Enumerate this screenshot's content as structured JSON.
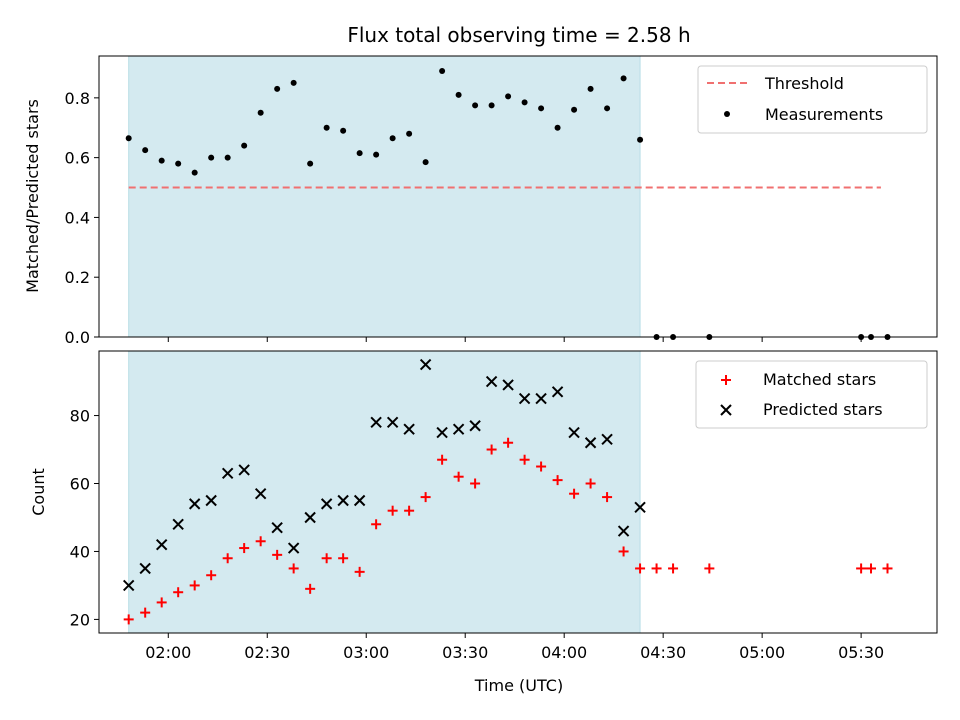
{
  "chart_data": [
    {
      "type": "scatter",
      "title": "Flux total observing time = 2.58 h",
      "xlabel": "",
      "ylabel": "Matched/Predicted stars",
      "xlim": [
        "01:39",
        "05:53"
      ],
      "ylim": [
        0,
        0.94
      ],
      "yticks": [
        0.0,
        0.2,
        0.4,
        0.6,
        0.8
      ],
      "ytick_labels": [
        "0.0",
        "0.2",
        "0.4",
        "0.6",
        "0.8"
      ],
      "shaded_span": [
        "01:48",
        "04:23"
      ],
      "shade_color": "#d4eaf0",
      "grid": false,
      "legend_position": "top-right",
      "threshold": {
        "name": "Threshold",
        "y": 0.5,
        "x_range": [
          "01:48",
          "05:36"
        ],
        "color": "#f07070"
      },
      "series": [
        {
          "name": "Measurements",
          "marker": "dot",
          "color": "#000000",
          "x": [
            "01:48",
            "01:53",
            "01:58",
            "02:03",
            "02:08",
            "02:13",
            "02:18",
            "02:23",
            "02:28",
            "02:33",
            "02:38",
            "02:43",
            "02:48",
            "02:53",
            "02:58",
            "03:03",
            "03:08",
            "03:13",
            "03:18",
            "03:23",
            "03:28",
            "03:33",
            "03:38",
            "03:43",
            "03:48",
            "03:53",
            "03:58",
            "04:03",
            "04:08",
            "04:13",
            "04:18",
            "04:23",
            "04:28",
            "04:33",
            "04:44",
            "05:30",
            "05:33",
            "05:38"
          ],
          "values": [
            0.665,
            0.625,
            0.59,
            0.58,
            0.55,
            0.6,
            0.6,
            0.64,
            0.75,
            0.83,
            0.85,
            0.58,
            0.7,
            0.69,
            0.615,
            0.61,
            0.665,
            0.68,
            0.585,
            0.89,
            0.81,
            0.775,
            0.775,
            0.805,
            0.785,
            0.765,
            0.7,
            0.76,
            0.83,
            0.765,
            0.865,
            0.66,
            0.0,
            0.0,
            0.0,
            0.0,
            0.0,
            0.0
          ]
        }
      ]
    },
    {
      "type": "scatter",
      "title": "",
      "xlabel": "Time (UTC)",
      "ylabel": "Count",
      "xlim": [
        "01:39",
        "05:53"
      ],
      "ylim": [
        16,
        99
      ],
      "xticks": [
        "02:00",
        "02:30",
        "03:00",
        "03:30",
        "04:00",
        "04:30",
        "05:00",
        "05:30"
      ],
      "yticks": [
        20,
        40,
        60,
        80
      ],
      "ytick_labels": [
        "20",
        "40",
        "60",
        "80"
      ],
      "shaded_span": [
        "01:48",
        "04:23"
      ],
      "shade_color": "#d4eaf0",
      "grid": false,
      "legend_position": "top-right",
      "series": [
        {
          "name": "Matched stars",
          "marker": "plus",
          "color": "#ff0000",
          "x": [
            "01:48",
            "01:53",
            "01:58",
            "02:03",
            "02:08",
            "02:13",
            "02:18",
            "02:23",
            "02:28",
            "02:33",
            "02:38",
            "02:43",
            "02:48",
            "02:53",
            "02:58",
            "03:03",
            "03:08",
            "03:13",
            "03:18",
            "03:23",
            "03:28",
            "03:33",
            "03:38",
            "03:43",
            "03:48",
            "03:53",
            "03:58",
            "04:03",
            "04:08",
            "04:13",
            "04:18",
            "04:23",
            "04:28",
            "04:33",
            "04:44",
            "05:30",
            "05:33",
            "05:38"
          ],
          "values": [
            20,
            22,
            25,
            28,
            30,
            33,
            38,
            41,
            43,
            39,
            35,
            29,
            38,
            38,
            34,
            48,
            52,
            52,
            56,
            67,
            62,
            60,
            70,
            72,
            67,
            65,
            61,
            57,
            60,
            56,
            40,
            35,
            35,
            35,
            35,
            35,
            35,
            35
          ]
        },
        {
          "name": "Predicted stars",
          "marker": "x",
          "color": "#000000",
          "x": [
            "01:48",
            "01:53",
            "01:58",
            "02:03",
            "02:08",
            "02:13",
            "02:18",
            "02:23",
            "02:28",
            "02:33",
            "02:38",
            "02:43",
            "02:48",
            "02:53",
            "02:58",
            "03:03",
            "03:08",
            "03:13",
            "03:18",
            "03:23",
            "03:28",
            "03:33",
            "03:38",
            "03:43",
            "03:48",
            "03:53",
            "03:58",
            "04:03",
            "04:08",
            "04:13",
            "04:18",
            "04:23"
          ],
          "values": [
            30,
            35,
            42,
            48,
            54,
            55,
            63,
            64,
            57,
            47,
            41,
            50,
            54,
            55,
            55,
            78,
            78,
            76,
            95,
            75,
            76,
            77,
            90,
            89,
            85,
            85,
            87,
            75,
            72,
            73,
            46,
            53
          ]
        }
      ]
    }
  ]
}
